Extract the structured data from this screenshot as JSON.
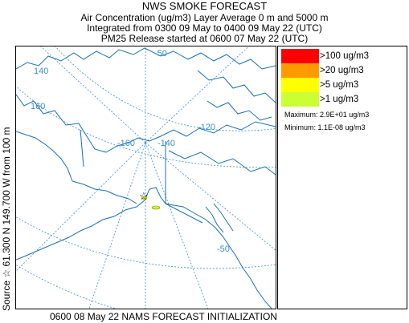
{
  "header": {
    "title": "NWS SMOKE FORECAST",
    "line2": "Air Concentration (ug/m3) Layer Average    0 m and  5000 m",
    "line3": "Integrated from 0300 09 May to 0400 09 May 22 (UTC)",
    "line4": "PM25 Release started at 0600 07 May 22 (UTC)"
  },
  "map": {
    "graticule_labels": [
      "140",
      "160",
      "-160",
      "-140",
      "-120",
      "-50",
      "-50"
    ],
    "source_marker": "star-icon"
  },
  "legend": {
    "items": [
      {
        "label": ">100 ug/m3",
        "color": "#ff0000"
      },
      {
        "label": ">20 ug/m3",
        "color": "#ff9900"
      },
      {
        "label": ">5 ug/m3",
        "color": "#ffff00"
      },
      {
        "label": ">1 ug/m3",
        "color": "#ccff33"
      }
    ],
    "maximum": "Maximum: 2.9E+01 ug/m3",
    "minimum": "Minimum: 1.1E-08 ug/m3"
  },
  "side_label": "Source ☆ 61.300 N 149.700  W     from  100 m",
  "bottom_label": "0600 08 May 22 NAMS FORECAST INITIALIZATION",
  "colors": {
    "coast": "#1a6fb0",
    "graticule": "#3a8fd0",
    "border": "#000000"
  }
}
